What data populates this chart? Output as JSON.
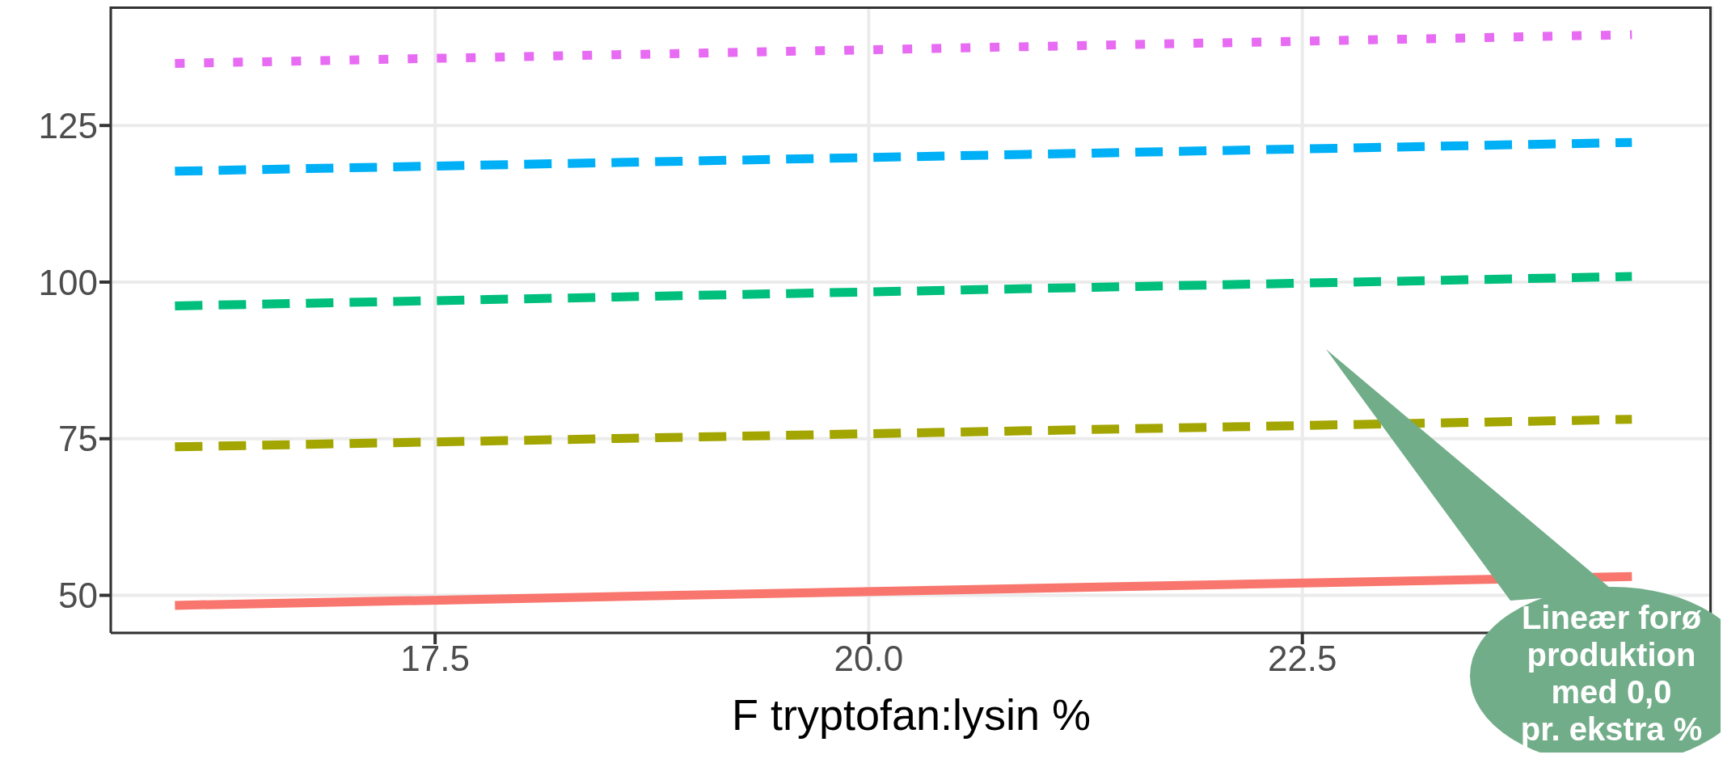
{
  "chart_data": {
    "type": "line",
    "xlabel": "F tryptofan:lysin %",
    "x": [
      16,
      24.4
    ],
    "series": [
      {
        "color": "#f8766d",
        "values": [
          48.4,
          53.0
        ],
        "line_style": "solid"
      },
      {
        "color": "#a3a500",
        "values": [
          73.7,
          78.1
        ],
        "line_style": "dashed"
      },
      {
        "color": "#00bf7d",
        "values": [
          96.2,
          100.9
        ],
        "line_style": "dashed"
      },
      {
        "color": "#00b0f6",
        "values": [
          117.7,
          122.3
        ],
        "line_style": "dashed"
      },
      {
        "color": "#e76bf3",
        "values": [
          134.9,
          139.5
        ],
        "line_style": "dotted"
      }
    ],
    "xlim": [
      15.63,
      24.86
    ],
    "xticks": [
      17.5,
      {
        "value": 20,
        "label": "20.0"
      },
      22.5
    ],
    "ylim": [
      44,
      144
    ],
    "yticks": [
      50,
      75,
      100,
      125
    ],
    "grid": true,
    "legend": false,
    "marker": "none",
    "annotations": [
      "Lineær forø\nproduktion\nmed 0,0\npr. ekstra %"
    ]
  }
}
